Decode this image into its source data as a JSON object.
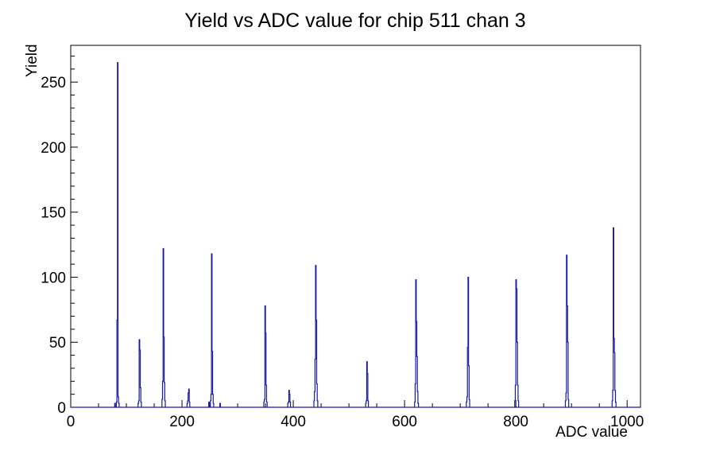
{
  "page": {
    "background": "#ffffff"
  },
  "chart_data": {
    "type": "bar",
    "title": "Yield vs ADC value for chip 511 chan 3",
    "xlabel": "ADC value",
    "ylabel": "Yield",
    "xlim": [
      0,
      1024
    ],
    "ylim": [
      0,
      278.25
    ],
    "x_major_ticks": [
      0,
      200,
      400,
      600,
      800,
      1000
    ],
    "x_minor_step": 50,
    "y_major_ticks": [
      0,
      50,
      100,
      150,
      200,
      250
    ],
    "y_minor_step": 10,
    "grid": false,
    "legend": false,
    "line_color": "#1919a0",
    "axis_color": "#000000",
    "bins_adc_height": [
      [
        79,
        3
      ],
      [
        82,
        4
      ],
      [
        83,
        67
      ],
      [
        84,
        265
      ],
      [
        85,
        8
      ],
      [
        86,
        3
      ],
      [
        121,
        3
      ],
      [
        122,
        5
      ],
      [
        123,
        52
      ],
      [
        124,
        44
      ],
      [
        125,
        15
      ],
      [
        126,
        4
      ],
      [
        164,
        6
      ],
      [
        165,
        20
      ],
      [
        166,
        122
      ],
      [
        167,
        54
      ],
      [
        168,
        19
      ],
      [
        169,
        5
      ],
      [
        209,
        3
      ],
      [
        210,
        5
      ],
      [
        211,
        11
      ],
      [
        212,
        14
      ],
      [
        213,
        4
      ],
      [
        248,
        4
      ],
      [
        251,
        5
      ],
      [
        252,
        10
      ],
      [
        253,
        118
      ],
      [
        254,
        43
      ],
      [
        255,
        10
      ],
      [
        256,
        3
      ],
      [
        268,
        3
      ],
      [
        347,
        4
      ],
      [
        348,
        6
      ],
      [
        349,
        78
      ],
      [
        350,
        57
      ],
      [
        351,
        17
      ],
      [
        352,
        4
      ],
      [
        390,
        3
      ],
      [
        391,
        4
      ],
      [
        392,
        13
      ],
      [
        393,
        10
      ],
      [
        394,
        4
      ],
      [
        437,
        5
      ],
      [
        438,
        12
      ],
      [
        439,
        37
      ],
      [
        440,
        109
      ],
      [
        441,
        67
      ],
      [
        442,
        18
      ],
      [
        443,
        5
      ],
      [
        530,
        3
      ],
      [
        531,
        5
      ],
      [
        532,
        35
      ],
      [
        533,
        26
      ],
      [
        534,
        5
      ],
      [
        618,
        4
      ],
      [
        619,
        18
      ],
      [
        620,
        98
      ],
      [
        621,
        66
      ],
      [
        622,
        39
      ],
      [
        623,
        12
      ],
      [
        624,
        3
      ],
      [
        711,
        4
      ],
      [
        712,
        8
      ],
      [
        713,
        46
      ],
      [
        714,
        100
      ],
      [
        715,
        32
      ],
      [
        716,
        6
      ],
      [
        798,
        5
      ],
      [
        799,
        17
      ],
      [
        800,
        98
      ],
      [
        801,
        91
      ],
      [
        802,
        50
      ],
      [
        803,
        17
      ],
      [
        804,
        5
      ],
      [
        889,
        5
      ],
      [
        890,
        11
      ],
      [
        891,
        117
      ],
      [
        892,
        78
      ],
      [
        893,
        50
      ],
      [
        894,
        6
      ],
      [
        973,
        5
      ],
      [
        974,
        13
      ],
      [
        975,
        138
      ],
      [
        976,
        53
      ],
      [
        977,
        42
      ],
      [
        978,
        13
      ],
      [
        979,
        4
      ]
    ]
  }
}
